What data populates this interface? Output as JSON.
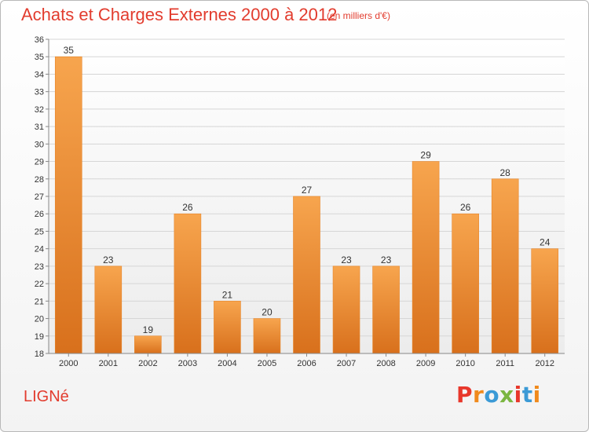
{
  "header": {
    "title": "Achats et Charges Externes 2000 à 2012",
    "subtitle": "(en milliers d'€)"
  },
  "footer": {
    "commune": "LIGNé",
    "brand": "Proxiti",
    "brand_colors": [
      "#e8372b",
      "#f08a1c",
      "#3b9ad6",
      "#7bb640",
      "#e8372b",
      "#3b9ad6",
      "#f08a1c"
    ]
  },
  "chart_data": {
    "type": "bar",
    "categories": [
      "2000",
      "2001",
      "2002",
      "2003",
      "2004",
      "2005",
      "2006",
      "2007",
      "2008",
      "2009",
      "2010",
      "2011",
      "2012"
    ],
    "values": [
      35,
      23,
      19,
      26,
      21,
      20,
      27,
      23,
      23,
      29,
      26,
      28,
      24
    ],
    "ylim": [
      18,
      36
    ],
    "yticks": [
      18,
      19,
      20,
      21,
      22,
      23,
      24,
      25,
      26,
      27,
      28,
      29,
      30,
      31,
      32,
      33,
      34,
      35,
      36
    ],
    "grid": true,
    "bar_color": "#f0922e",
    "label_color": "#e23c2e"
  }
}
